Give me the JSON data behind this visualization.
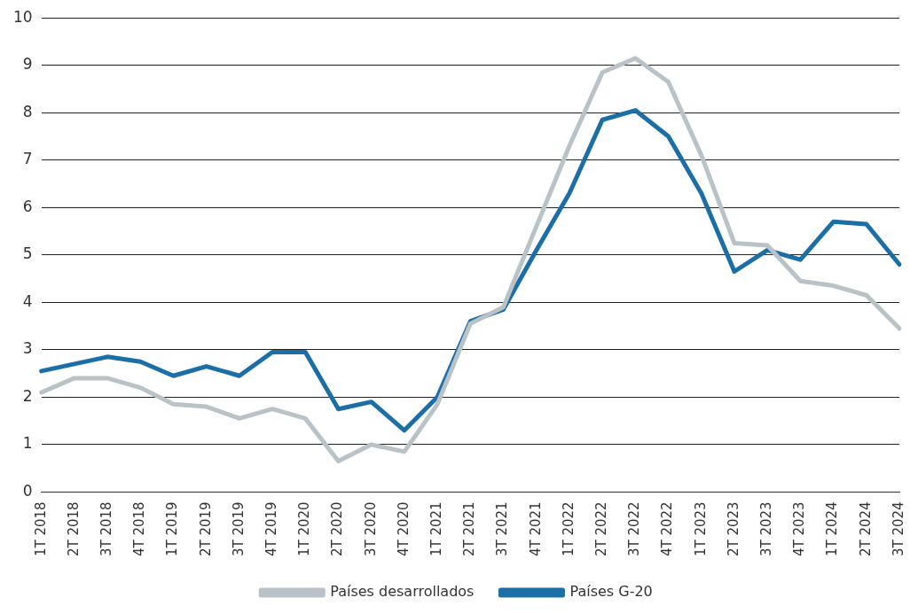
{
  "chart_data": {
    "type": "line",
    "categories": [
      "1T 2018",
      "2T 2018",
      "3T 2018",
      "4T 2018",
      "1T 2019",
      "2T 2019",
      "3T 2019",
      "4T 2019",
      "1T 2020",
      "2T 2020",
      "3T 2020",
      "4T 2020",
      "1T 2021",
      "2T 2021",
      "3T 2021",
      "4T 2021",
      "1T 2022",
      "2T 2022",
      "3T 2022",
      "4T 2022",
      "1T 2023",
      "2T 2023",
      "3T 2023",
      "4T 2023",
      "1T 2024",
      "2T 2024",
      "3T 2024"
    ],
    "series": [
      {
        "name": "Países desarrollados",
        "color": "#b9c3c7",
        "values": [
          2.1,
          2.4,
          2.4,
          2.2,
          1.85,
          1.8,
          1.55,
          1.75,
          1.55,
          0.65,
          1.0,
          0.85,
          1.85,
          3.55,
          3.9,
          5.6,
          7.3,
          8.85,
          9.15,
          8.65,
          7.1,
          5.25,
          5.2,
          4.45,
          4.35,
          4.15,
          3.45
        ]
      },
      {
        "name": "Países G-20",
        "color": "#1b6fa6",
        "values": [
          2.55,
          2.7,
          2.85,
          2.75,
          2.45,
          2.65,
          2.45,
          2.95,
          2.95,
          1.75,
          1.9,
          1.3,
          2.0,
          3.6,
          3.85,
          5.1,
          6.3,
          7.85,
          8.05,
          7.5,
          6.3,
          4.65,
          5.1,
          4.9,
          5.7,
          5.65,
          4.8
        ]
      }
    ],
    "ylim": [
      0,
      10
    ],
    "yticks": [
      0,
      1,
      2,
      3,
      4,
      5,
      6,
      7,
      8,
      9,
      10
    ],
    "grid": "y",
    "legend": "bottom",
    "marker": "none",
    "line_style": "solid"
  }
}
